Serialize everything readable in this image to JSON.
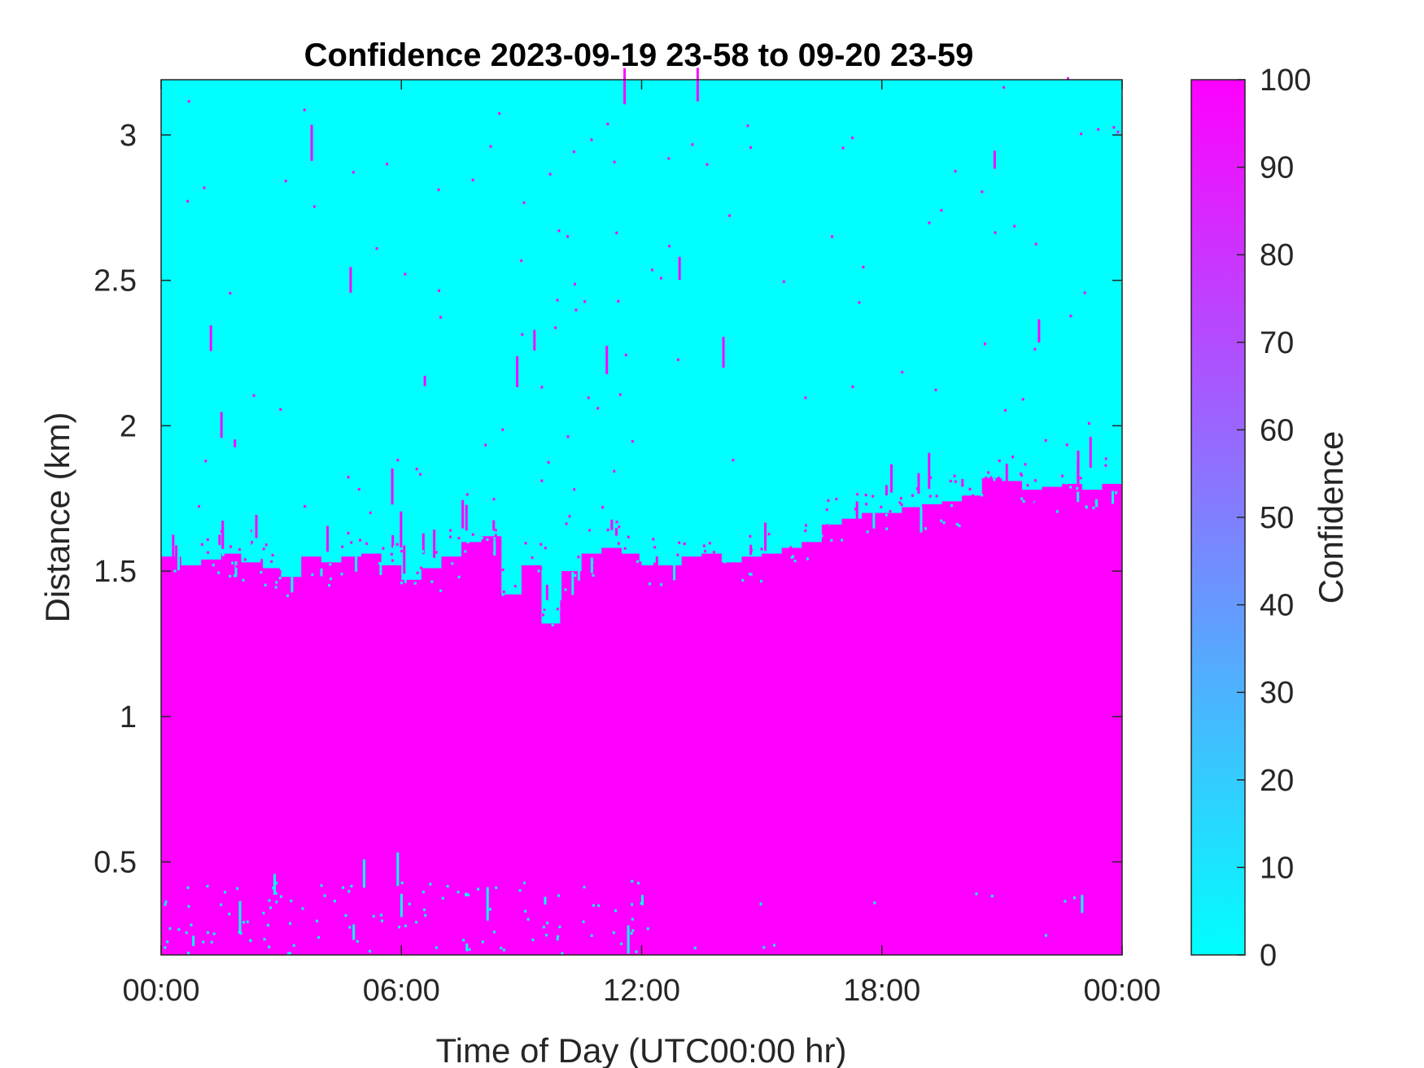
{
  "chart_data": {
    "type": "heatmap",
    "title": "Confidence 2023-09-19 23-58 to 09-20 23-59",
    "xlabel": "Time of Day (UTC00:00 hr)",
    "ylabel": "Distance (km)",
    "xlim": [
      0,
      24
    ],
    "ylim": [
      0.18,
      3.19
    ],
    "x_tick_values": [
      0,
      6,
      12,
      18,
      24
    ],
    "x_ticks": [
      "00:00",
      "06:00",
      "12:00",
      "18:00",
      "00:00"
    ],
    "y_tick_values": [
      0.5,
      1,
      1.5,
      2,
      2.5,
      3
    ],
    "y_ticks": [
      "0.5",
      "1",
      "1.5",
      "2",
      "2.5",
      "3"
    ],
    "colorbar": {
      "label": "Confidence",
      "range": [
        0,
        100
      ],
      "tick_values": [
        0,
        10,
        20,
        30,
        40,
        50,
        60,
        70,
        80,
        90,
        100
      ],
      "ticks": [
        "0",
        "10",
        "20",
        "30",
        "40",
        "50",
        "60",
        "70",
        "80",
        "90",
        "100"
      ],
      "colormap": "cool",
      "low_color": "#00ffff",
      "high_color": "#ff00ff"
    },
    "values_present": [
      0,
      100
    ],
    "boundary_top_km": {
      "description_free": true,
      "x_hours": [
        0,
        0.5,
        1,
        1.5,
        2,
        2.5,
        3,
        3.5,
        4,
        4.5,
        5,
        5.5,
        6,
        6.5,
        7,
        7.5,
        8,
        8.5,
        9,
        9.5,
        10,
        10.5,
        11,
        11.5,
        12,
        12.5,
        13,
        13.5,
        14,
        14.5,
        15,
        15.5,
        16,
        16.5,
        17,
        17.5,
        18,
        18.5,
        19,
        19.5,
        20,
        20.5,
        21,
        21.5,
        22,
        22.5,
        23,
        23.5,
        24
      ],
      "y_km": [
        1.55,
        1.52,
        1.54,
        1.56,
        1.53,
        1.51,
        1.48,
        1.55,
        1.53,
        1.55,
        1.56,
        1.52,
        1.47,
        1.51,
        1.55,
        1.6,
        1.62,
        1.42,
        1.52,
        1.32,
        1.5,
        1.56,
        1.58,
        1.56,
        1.52,
        1.52,
        1.55,
        1.56,
        1.53,
        1.55,
        1.56,
        1.58,
        1.6,
        1.66,
        1.68,
        1.7,
        1.7,
        1.72,
        1.73,
        1.74,
        1.76,
        1.82,
        1.81,
        1.78,
        1.79,
        1.8,
        1.78,
        1.8,
        1.79
      ]
    }
  }
}
